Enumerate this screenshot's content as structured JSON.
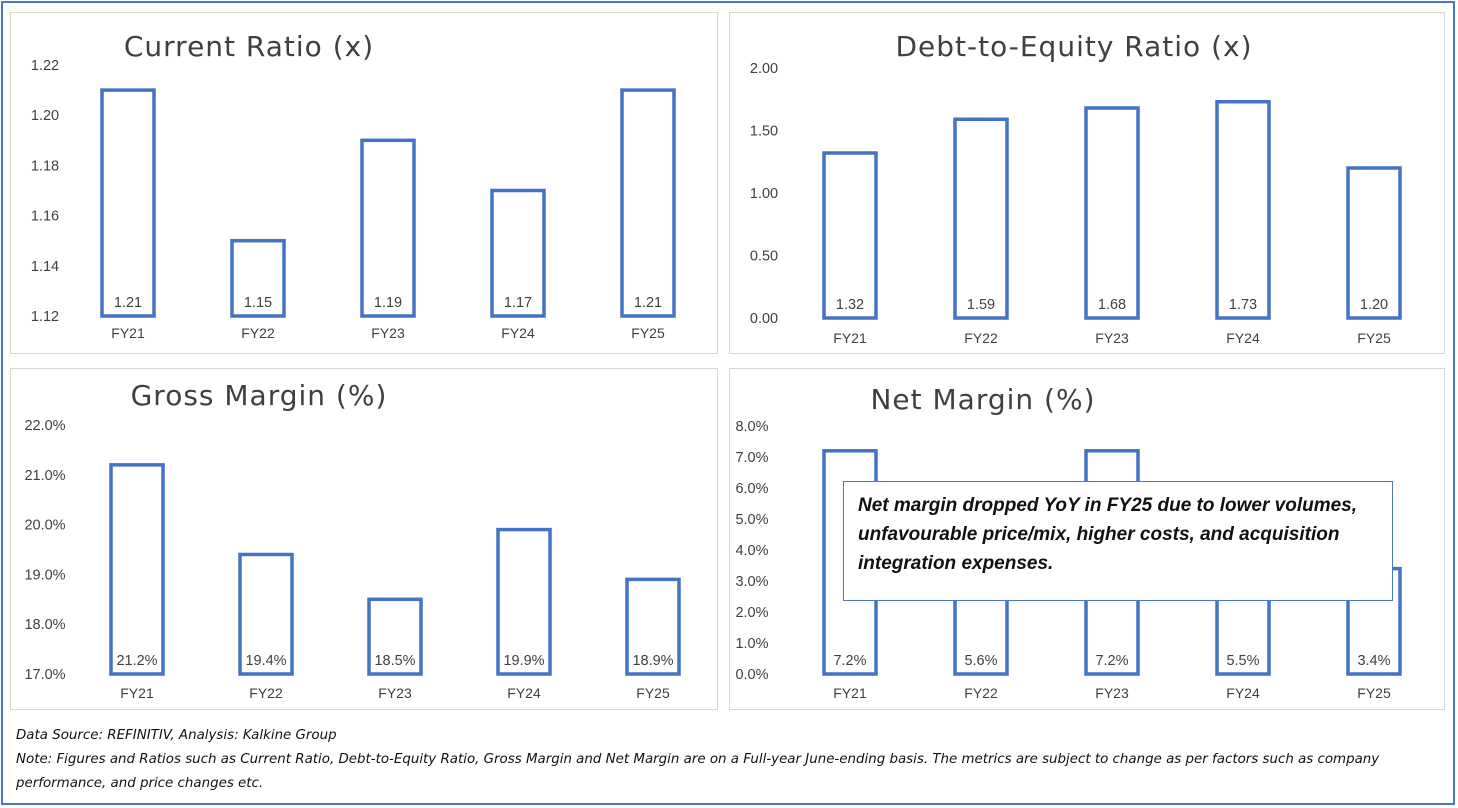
{
  "chart_data": [
    {
      "type": "bar",
      "title": "Current Ratio (x)",
      "categories": [
        "FY21",
        "FY22",
        "FY23",
        "FY24",
        "FY25"
      ],
      "values": [
        1.21,
        1.15,
        1.19,
        1.17,
        1.21
      ],
      "value_labels": [
        "1.21",
        "1.15",
        "1.19",
        "1.17",
        "1.21"
      ],
      "yticks": [
        "1.22",
        "1.20",
        "1.18",
        "1.16",
        "1.14",
        "1.12"
      ],
      "ylim": [
        1.12,
        1.22
      ],
      "xlabel": "",
      "ylabel": "",
      "grid": false,
      "legend": "none"
    },
    {
      "type": "bar",
      "title": "Debt-to-Equity Ratio (x)",
      "categories": [
        "FY21",
        "FY22",
        "FY23",
        "FY24",
        "FY25"
      ],
      "values": [
        1.32,
        1.59,
        1.68,
        1.73,
        1.2
      ],
      "value_labels": [
        "1.32",
        "1.59",
        "1.68",
        "1.73",
        "1.20"
      ],
      "yticks": [
        "2.00",
        "1.50",
        "1.00",
        "0.50",
        "0.00"
      ],
      "ylim": [
        0,
        2.0
      ],
      "xlabel": "",
      "ylabel": "",
      "grid": false,
      "legend": "none"
    },
    {
      "type": "bar",
      "title": "Gross Margin (%)",
      "categories": [
        "FY21",
        "FY22",
        "FY23",
        "FY24",
        "FY25"
      ],
      "values": [
        21.2,
        19.4,
        18.5,
        19.9,
        18.9
      ],
      "value_labels": [
        "21.2%",
        "19.4%",
        "18.5%",
        "19.9%",
        "18.9%"
      ],
      "yticks": [
        "22.0%",
        "21.0%",
        "20.0%",
        "19.0%",
        "18.0%",
        "17.0%"
      ],
      "ylim": [
        17.0,
        22.0
      ],
      "xlabel": "",
      "ylabel": "",
      "grid": false,
      "legend": "none"
    },
    {
      "type": "bar",
      "title": "Net Margin (%)",
      "categories": [
        "FY21",
        "FY22",
        "FY23",
        "FY24",
        "FY25"
      ],
      "values": [
        7.2,
        5.6,
        7.2,
        5.5,
        3.4
      ],
      "value_labels": [
        "7.2%",
        "5.6%",
        "7.2%",
        "5.5%",
        "3.4%"
      ],
      "yticks": [
        "8.0%",
        "7.0%",
        "6.0%",
        "5.0%",
        "4.0%",
        "3.0%",
        "2.0%",
        "1.0%",
        "0.0%"
      ],
      "ylim": [
        0,
        8.0
      ],
      "xlabel": "",
      "ylabel": "",
      "grid": false,
      "legend": "none",
      "annotation": "Net margin dropped YoY in FY25 due to lower volumes, unfavourable price/mix, higher costs, and acquisition integration expenses."
    }
  ],
  "footer": {
    "source": "Data Source: REFINITIV, Analysis: Kalkine Group",
    "note": "Note: Figures and Ratios such as Current Ratio, Debt-to-Equity Ratio, Gross Margin and Net Margin are on a Full-year June-ending basis. The metrics are subject to change as per factors such as company performance, and price changes etc."
  },
  "colors": {
    "bar_stroke": "#4472c4",
    "frame": "#4a78c2",
    "text": "#404040",
    "title": "#404040"
  }
}
